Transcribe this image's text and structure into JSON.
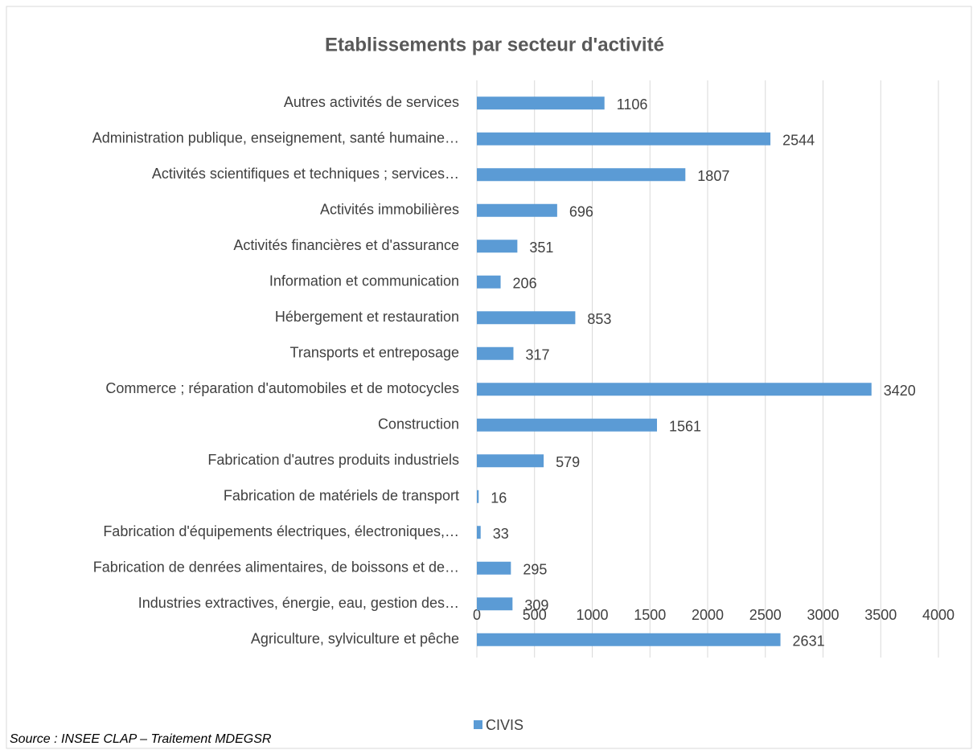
{
  "chart_data": {
    "type": "bar",
    "orientation": "horizontal",
    "title": "Etablissements par secteur d'activité",
    "source": "Source : INSEE CLAP – Traitement MDEGSR",
    "categories": [
      "Autres activités de services",
      "Administration publique, enseignement, santé humaine…",
      "Activités scientifiques et techniques ; services…",
      "Activités immobilières",
      "Activités financières et d'assurance",
      "Information et communication",
      "Hébergement et restauration",
      "Transports et entreposage",
      "Commerce ; réparation d'automobiles et de motocycles",
      "Construction",
      "Fabrication d'autres produits industriels",
      "Fabrication de matériels de transport",
      "Fabrication d'équipements électriques, électroniques,…",
      "Fabrication de denrées alimentaires, de boissons et  de…",
      "Industries extractives,  énergie, eau, gestion des…",
      "Agriculture, sylviculture et pêche"
    ],
    "series": [
      {
        "name": "CIVIS",
        "color": "#5b9bd5",
        "values": [
          1106,
          2544,
          1807,
          696,
          351,
          206,
          853,
          317,
          3420,
          1561,
          579,
          16,
          33,
          295,
          309,
          2631
        ]
      }
    ],
    "xlim": [
      0,
      4000
    ],
    "xticks": [
      0,
      500,
      1000,
      1500,
      2000,
      2500,
      3000,
      3500,
      4000
    ],
    "grid": true,
    "legend": "bottom"
  }
}
